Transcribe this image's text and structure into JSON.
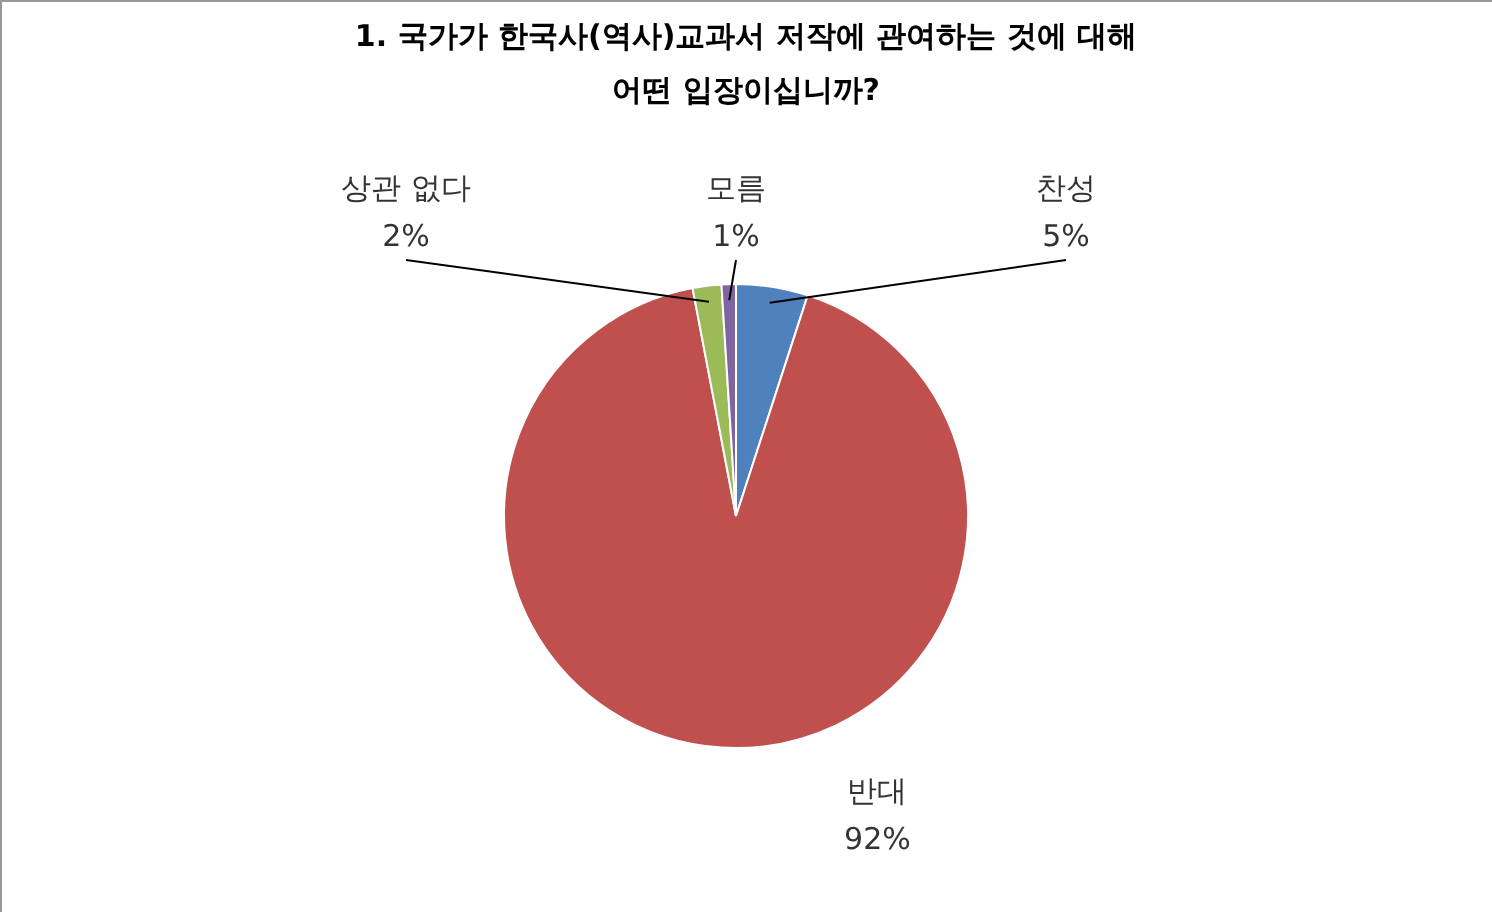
{
  "chart_data": {
    "type": "pie",
    "title": "1.  국가가 한국사(역사)교과서 저작에 관여하는 것에 대해\n어떤 입장이십니까?",
    "categories": [
      "찬성",
      "반대",
      "상관 없다",
      "모름"
    ],
    "values": [
      5,
      92,
      2,
      1
    ],
    "value_labels": [
      "5%",
      "92%",
      "2%",
      "1%"
    ],
    "colors": [
      "#4f81bd",
      "#c0504d",
      "#9bbb59",
      "#8064a2"
    ]
  }
}
